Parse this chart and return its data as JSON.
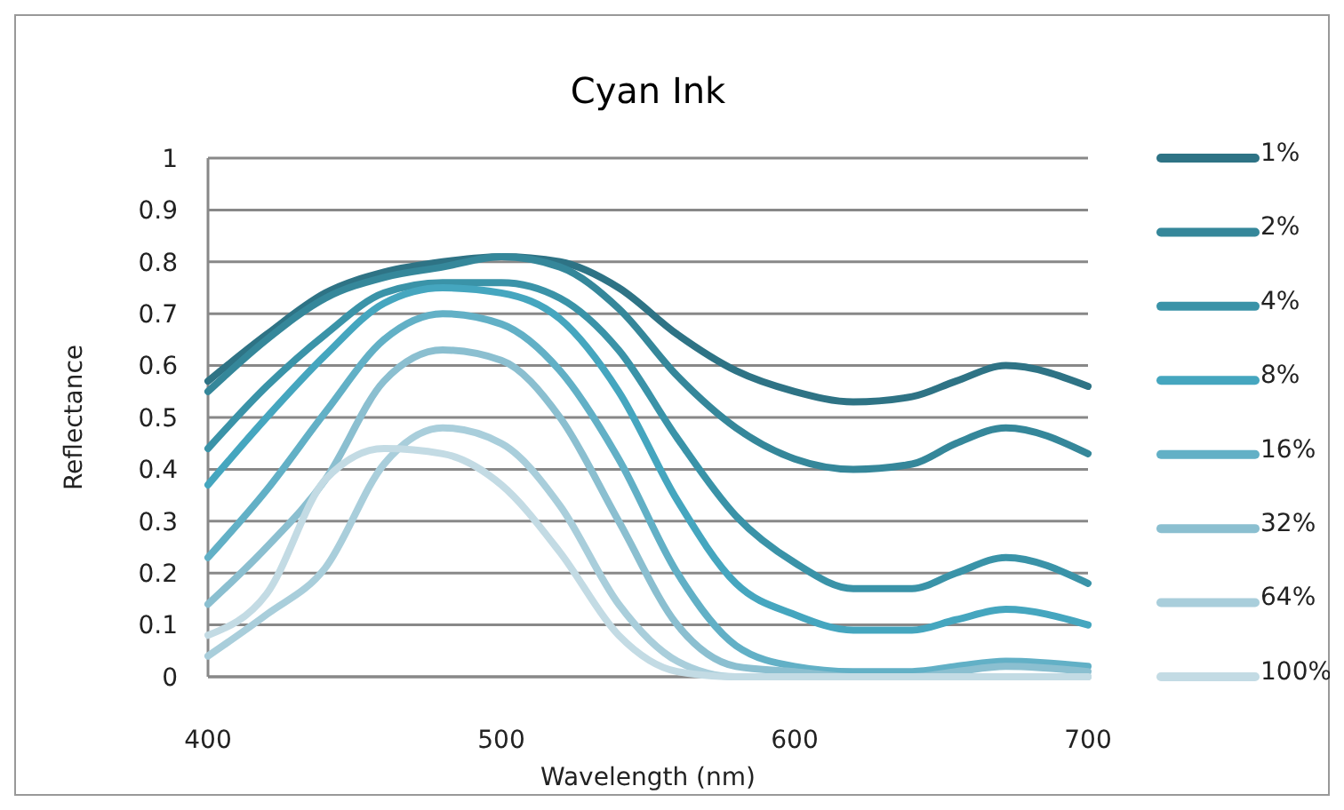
{
  "chart_data": {
    "type": "line",
    "title": "Cyan Ink",
    "xlabel": "Wavelength (nm)",
    "ylabel": "Reflectance",
    "x": [
      400,
      420,
      440,
      460,
      480,
      500,
      520,
      540,
      560,
      580,
      600,
      620,
      640,
      655,
      672,
      700
    ],
    "xlim": [
      400,
      700
    ],
    "xticks": [
      400,
      500,
      600,
      700
    ],
    "ylim": [
      0,
      1
    ],
    "yticks": [
      0,
      0.1,
      0.2,
      0.3,
      0.4,
      0.5,
      0.6,
      0.7,
      0.8,
      0.9,
      1
    ],
    "grid": "y",
    "legend": "right",
    "line_style": "solid",
    "marker": "none",
    "series": [
      {
        "name": "1%",
        "color": "#2e7385",
        "values": [
          0.57,
          0.66,
          0.74,
          0.78,
          0.8,
          0.81,
          0.8,
          0.75,
          0.66,
          0.59,
          0.55,
          0.53,
          0.54,
          0.57,
          0.6,
          0.56
        ]
      },
      {
        "name": "2%",
        "color": "#35879a",
        "values": [
          0.55,
          0.65,
          0.73,
          0.77,
          0.79,
          0.81,
          0.79,
          0.71,
          0.58,
          0.48,
          0.42,
          0.4,
          0.41,
          0.45,
          0.48,
          0.43
        ]
      },
      {
        "name": "4%",
        "color": "#3a93a8",
        "values": [
          0.44,
          0.56,
          0.66,
          0.74,
          0.76,
          0.76,
          0.73,
          0.63,
          0.46,
          0.31,
          0.22,
          0.17,
          0.17,
          0.2,
          0.23,
          0.18
        ]
      },
      {
        "name": "8%",
        "color": "#45a6bf",
        "values": [
          0.37,
          0.5,
          0.62,
          0.72,
          0.75,
          0.74,
          0.69,
          0.55,
          0.34,
          0.18,
          0.12,
          0.09,
          0.09,
          0.11,
          0.13,
          0.1
        ]
      },
      {
        "name": "16%",
        "color": "#62b0c6",
        "values": [
          0.23,
          0.36,
          0.51,
          0.65,
          0.7,
          0.68,
          0.59,
          0.42,
          0.2,
          0.06,
          0.02,
          0.01,
          0.01,
          0.02,
          0.03,
          0.02
        ]
      },
      {
        "name": "32%",
        "color": "#8bbfd0",
        "values": [
          0.14,
          0.25,
          0.38,
          0.57,
          0.63,
          0.61,
          0.5,
          0.3,
          0.1,
          0.02,
          0.01,
          0,
          0,
          0.01,
          0.02,
          0.01
        ]
      },
      {
        "name": "64%",
        "color": "#a9cedb",
        "values": [
          0.04,
          0.12,
          0.21,
          0.41,
          0.48,
          0.45,
          0.33,
          0.14,
          0.03,
          0,
          0,
          0,
          0,
          0,
          0,
          0
        ]
      },
      {
        "name": "100%",
        "color": "#c3dbe4",
        "values": [
          0.08,
          0.16,
          0.38,
          0.44,
          0.43,
          0.37,
          0.24,
          0.08,
          0.01,
          0,
          0,
          0,
          0,
          0,
          0,
          0
        ]
      }
    ]
  }
}
